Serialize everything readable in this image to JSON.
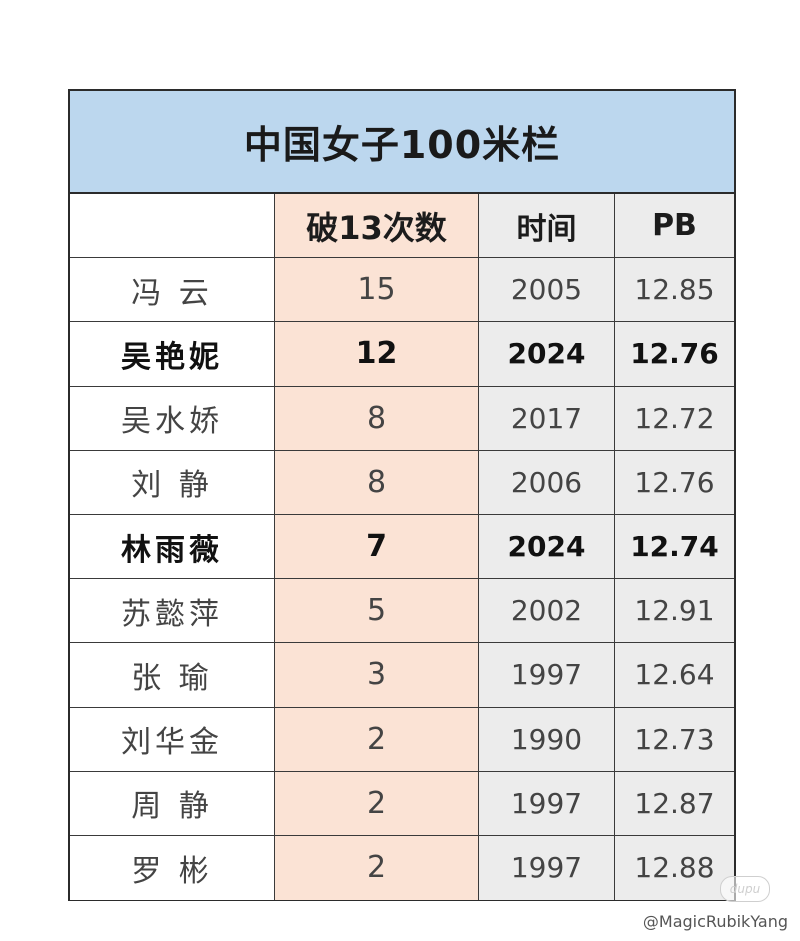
{
  "table": {
    "title": "中国女子100米栏",
    "headers": {
      "name": "",
      "count": "破13次数",
      "time": "时间",
      "pb": "PB"
    },
    "rows": [
      {
        "name": "冯 云",
        "count": "15",
        "time": "2005",
        "pb": "12.85"
      },
      {
        "name": "吴艳妮",
        "count": "12",
        "time": "2024",
        "pb": "12.76"
      },
      {
        "name": "吴水娇",
        "count": "8",
        "time": "2017",
        "pb": "12.72"
      },
      {
        "name": "刘 静",
        "count": "8",
        "time": "2006",
        "pb": "12.76"
      },
      {
        "name": "林雨薇",
        "count": "7",
        "time": "2024",
        "pb": "12.74"
      },
      {
        "name": "苏懿萍",
        "count": "5",
        "time": "2002",
        "pb": "12.91"
      },
      {
        "name": "张 瑜",
        "count": "3",
        "time": "1997",
        "pb": "12.64"
      },
      {
        "name": "刘华金",
        "count": "2",
        "time": "1990",
        "pb": "12.73"
      },
      {
        "name": "周 静",
        "count": "2",
        "time": "1997",
        "pb": "12.87"
      },
      {
        "name": "罗 彬",
        "count": "2",
        "time": "1997",
        "pb": "12.88"
      }
    ]
  },
  "watermark": "@MagicRubikYang",
  "stamp": "dupu",
  "colors": {
    "title_bg": "#bcd7ee",
    "count_col_bg": "#fbe3d5",
    "time_pb_col_bg": "#ececec"
  }
}
